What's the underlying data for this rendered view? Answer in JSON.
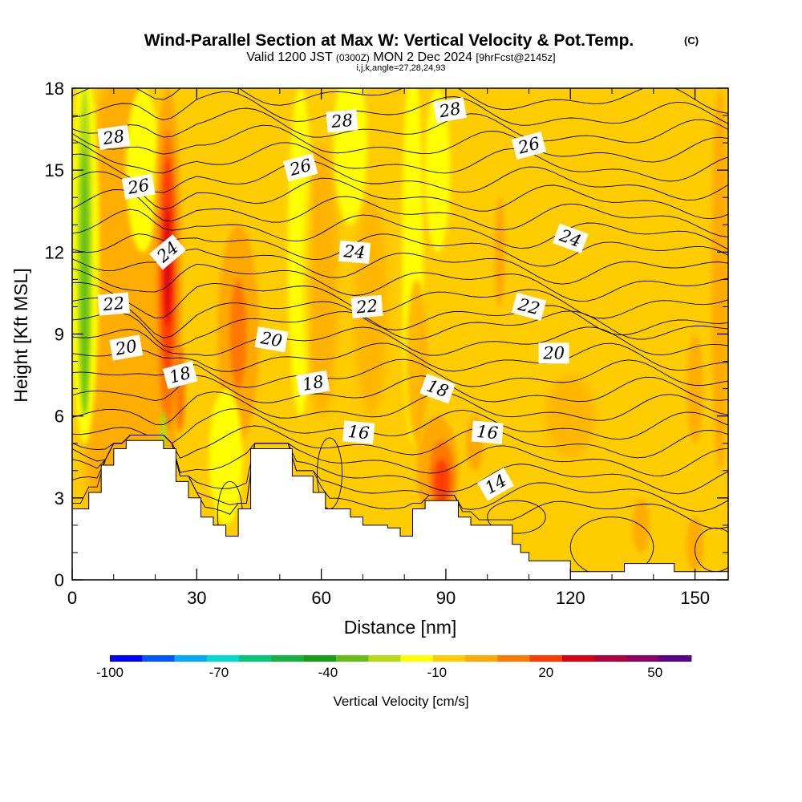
{
  "chart_data": {
    "type": "heatmap",
    "title": "Wind-Parallel Section at Max W: Vertical Velocity & Pot.Temp.",
    "copyright_mark": "(C)",
    "subtitle": {
      "valid": "Valid 1200 JST",
      "utc": "(0300Z)",
      "date": "MON 2 Dec 2024",
      "forecast": "[9hrFcst@2145z]"
    },
    "grid_info": "i,j,k,angle=27,28,24,93",
    "xlabel": "Distance [nm]",
    "ylabel": "Height [Kft MSL]",
    "xlim": [
      0,
      158
    ],
    "ylim": [
      0,
      18
    ],
    "x_ticks": [
      0,
      30,
      60,
      90,
      120,
      150
    ],
    "y_ticks": [
      0,
      3,
      6,
      9,
      12,
      15,
      18
    ],
    "x_tick_labels": [
      "0",
      "30",
      "60",
      "90",
      "120",
      "150"
    ],
    "y_tick_labels": [
      "0",
      "3",
      "6",
      "9",
      "12",
      "15",
      "18"
    ],
    "colorbar": {
      "label": "Vertical Velocity [cm/s]",
      "min": -100,
      "max": 60,
      "tick_values": [
        -100,
        -70,
        -40,
        -10,
        20,
        50
      ],
      "tick_labels": [
        "-100",
        "-70",
        "-40",
        "-10",
        "20",
        "50"
      ],
      "colors": [
        "#0000ff",
        "#0055ff",
        "#00aaff",
        "#00ddd0",
        "#00c878",
        "#12b440",
        "#14a014",
        "#64be14",
        "#b4dc14",
        "#ffff00",
        "#ffcc00",
        "#ffa800",
        "#ff7800",
        "#ff3c00",
        "#dc0014",
        "#b4003c",
        "#8c0064",
        "#5a008c"
      ]
    },
    "background_colors": {
      "main": "#ffcc00",
      "updraft_weak": "#ffa800",
      "updraft_mod": "#ff7800",
      "updraft_strong": "#ff3c00",
      "updraft_core": "#dc0014",
      "downdraft_weak": "#ffff00",
      "downdraft_mod": "#b4dc14",
      "downdraft_strong": "#64be14"
    },
    "terrain_profile": {
      "x": [
        0,
        0,
        4,
        4,
        7,
        7,
        10,
        10,
        13,
        13,
        16,
        16,
        22,
        22,
        25,
        25,
        28,
        28,
        31,
        31,
        34,
        34,
        37,
        37,
        40,
        40,
        43,
        43,
        49,
        49,
        53,
        53,
        58,
        58,
        61,
        61,
        64,
        64,
        67,
        67,
        70,
        70,
        73,
        73,
        76,
        76,
        79,
        79,
        82,
        82,
        85,
        85,
        88,
        88,
        93,
        93,
        96,
        96,
        99,
        99,
        106,
        106,
        108,
        108,
        110,
        110,
        113,
        113,
        120,
        120,
        130,
        130,
        133,
        133,
        145,
        145,
        158,
        158
      ],
      "y": [
        0,
        2.6,
        2.6,
        3.2,
        3.2,
        4.2,
        4.2,
        4.8,
        4.8,
        5.1,
        5.1,
        5.1,
        5.1,
        4.8,
        4.8,
        3.6,
        3.6,
        3,
        3,
        2.3,
        2.3,
        2,
        2,
        1.6,
        1.6,
        2.6,
        2.6,
        4.8,
        4.8,
        4.8,
        4.8,
        3.8,
        3.8,
        3.2,
        3.2,
        2.6,
        2.6,
        2.6,
        2.6,
        2.3,
        2.3,
        2,
        2,
        2,
        2,
        1.9,
        1.9,
        1.6,
        1.6,
        2.6,
        2.6,
        2.9,
        2.9,
        2.9,
        2.9,
        2.3,
        2.3,
        2,
        2,
        2,
        2,
        1.3,
        1.3,
        1,
        1,
        0.7,
        0.7,
        0.7,
        0.7,
        0.3,
        0.3,
        0.3,
        0.3,
        0.6,
        0.6,
        0.3,
        0.3,
        0
      ],
      "color": "#ffffff"
    },
    "contour_labels": [
      {
        "text": "28",
        "x": 10,
        "y": 16.2,
        "angle": -8
      },
      {
        "text": "26",
        "x": 16,
        "y": 14.4,
        "angle": -10
      },
      {
        "text": "24",
        "x": 23,
        "y": 12.0,
        "angle": -40
      },
      {
        "text": "22",
        "x": 10,
        "y": 10.1,
        "angle": -5
      },
      {
        "text": "20",
        "x": 13,
        "y": 8.5,
        "angle": -10
      },
      {
        "text": "18",
        "x": 26,
        "y": 7.5,
        "angle": -15
      },
      {
        "text": "28",
        "x": 65,
        "y": 16.8,
        "angle": -5
      },
      {
        "text": "26",
        "x": 55,
        "y": 15.1,
        "angle": -15
      },
      {
        "text": "24",
        "x": 68,
        "y": 12.0,
        "angle": 5
      },
      {
        "text": "20",
        "x": 48,
        "y": 8.8,
        "angle": 10
      },
      {
        "text": "22",
        "x": 71,
        "y": 10.0,
        "angle": -5
      },
      {
        "text": "18",
        "x": 58,
        "y": 7.2,
        "angle": -10
      },
      {
        "text": "16",
        "x": 69,
        "y": 5.4,
        "angle": 5
      },
      {
        "text": "28",
        "x": 91,
        "y": 17.2,
        "angle": -10
      },
      {
        "text": "18",
        "x": 88,
        "y": 7.0,
        "angle": 20
      },
      {
        "text": "16",
        "x": 100,
        "y": 5.4,
        "angle": 5
      },
      {
        "text": "14",
        "x": 102,
        "y": 3.5,
        "angle": -30
      },
      {
        "text": "26",
        "x": 110,
        "y": 15.9,
        "angle": -15
      },
      {
        "text": "24",
        "x": 120,
        "y": 12.5,
        "angle": 20
      },
      {
        "text": "22",
        "x": 110,
        "y": 10.0,
        "angle": 15
      },
      {
        "text": "20",
        "x": 116,
        "y": 8.3,
        "angle": 0
      }
    ]
  }
}
